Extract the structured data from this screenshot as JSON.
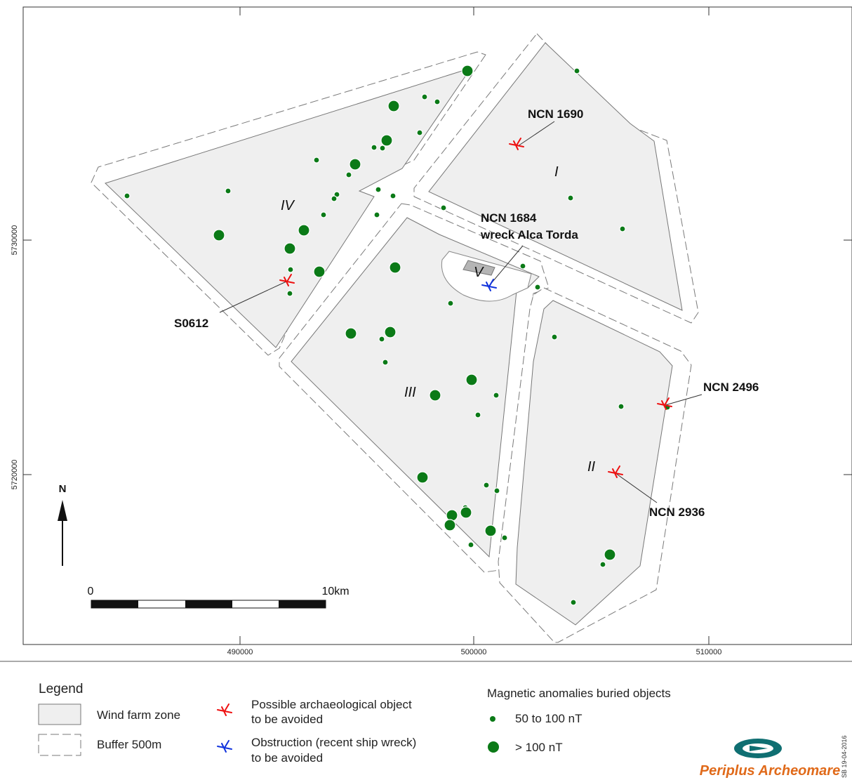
{
  "map": {
    "y_ticks": [
      "5730000",
      "5720000"
    ],
    "x_ticks": [
      "490000",
      "500000",
      "510000"
    ],
    "zone_labels": [
      "I",
      "II",
      "III",
      "IV",
      "V"
    ],
    "callouts": [
      {
        "id": "ncn1690",
        "lines": [
          "NCN 1690"
        ]
      },
      {
        "id": "ncn1684",
        "lines": [
          "NCN 1684",
          "wreck Alca Torda"
        ]
      },
      {
        "id": "s0612",
        "lines": [
          "S0612"
        ]
      },
      {
        "id": "ncn2496",
        "lines": [
          "NCN 2496"
        ]
      },
      {
        "id": "ncn2936",
        "lines": [
          "NCN 2936"
        ]
      }
    ],
    "north_label": "N",
    "scale": {
      "start": "0",
      "end": "10km"
    },
    "colors": {
      "zone_fill": "#efefef",
      "zone_stroke": "#777777",
      "anomaly": "#0b7a17",
      "archaeological": "#ee1111",
      "obstruction": "#1133dd"
    }
  },
  "legend": {
    "title": "Legend",
    "wind_farm": "Wind farm zone",
    "buffer": "Buffer 500m",
    "arch_line1": "Possible archaeological object",
    "arch_line2": "to be avoided",
    "obs_line1": "Obstruction (recent ship wreck)",
    "obs_line2": "to be avoided",
    "mag_title": "Magnetic anomalies buried objects",
    "mag_small": "50 to 100 nT",
    "mag_large": "> 100 nT"
  },
  "logo": {
    "brand": "Periplus Archeomare",
    "icon": "boat-logo-icon"
  },
  "credit": "SB 19-04-2016"
}
